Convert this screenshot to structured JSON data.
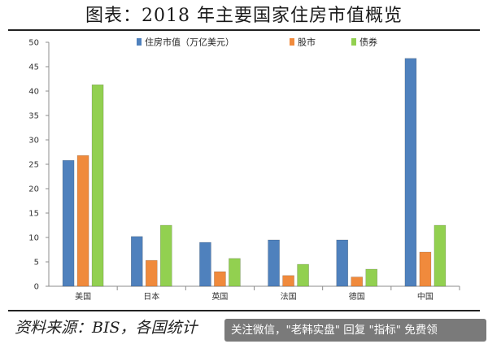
{
  "title": "图表：2018 年主要国家住房市值概览",
  "source": "资料来源：BIS，各国统计",
  "banner": "关注微信，\"老韩实盘\" 回复 \"指标\" 免费领",
  "chart_data": {
    "type": "bar",
    "categories": [
      "美国",
      "日本",
      "英国",
      "法国",
      "德国",
      "中国"
    ],
    "series": [
      {
        "name": "住房市值（万亿美元）",
        "color": "#4f81bd",
        "values": [
          25.8,
          10.2,
          9.0,
          9.5,
          9.5,
          46.7
        ]
      },
      {
        "name": "股市",
        "color": "#f08a3c",
        "values": [
          26.8,
          5.3,
          3.0,
          2.2,
          1.9,
          7.0
        ]
      },
      {
        "name": "债券",
        "color": "#92d050",
        "values": [
          41.3,
          12.5,
          5.7,
          4.5,
          3.5,
          12.5
        ]
      }
    ],
    "ylim": [
      0,
      50
    ],
    "yticks": [
      0,
      5,
      10,
      15,
      20,
      25,
      30,
      35,
      40,
      45,
      50
    ],
    "grid": false,
    "legend": "top-center"
  }
}
